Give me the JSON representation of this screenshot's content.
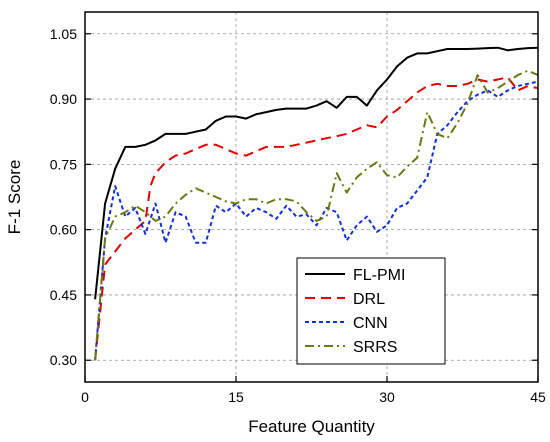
{
  "chart_data": {
    "type": "line",
    "xlabel": "Feature Quantity",
    "ylabel": "F-1 Score",
    "xlim": [
      0,
      45
    ],
    "ylim": [
      0.25,
      1.1
    ],
    "xticks": [
      "0",
      "15",
      "30",
      "45"
    ],
    "yticks": [
      "0.30",
      "0.45",
      "0.60",
      "0.75",
      "0.90",
      "1.05"
    ],
    "grid": true,
    "legend_position": "bottom-right",
    "series": [
      {
        "name": "FL-PMI",
        "color": "#000000",
        "dash": "solid",
        "x": [
          1,
          2,
          3,
          4,
          5,
          6,
          7,
          8,
          9,
          10,
          11,
          12,
          13,
          14,
          15,
          16,
          17,
          18,
          19,
          20,
          21,
          22,
          23,
          24,
          25,
          26,
          27,
          28,
          29,
          30,
          31,
          32,
          33,
          34,
          35,
          36,
          37,
          38,
          39,
          40,
          41,
          42,
          43,
          44,
          45
        ],
        "values": [
          0.44,
          0.66,
          0.74,
          0.79,
          0.79,
          0.795,
          0.805,
          0.82,
          0.82,
          0.82,
          0.825,
          0.83,
          0.85,
          0.86,
          0.86,
          0.855,
          0.865,
          0.87,
          0.875,
          0.878,
          0.878,
          0.878,
          0.885,
          0.895,
          0.88,
          0.905,
          0.905,
          0.885,
          0.92,
          0.945,
          0.975,
          0.995,
          1.005,
          1.005,
          1.01,
          1.015,
          1.015,
          1.015,
          1.016,
          1.017,
          1.018,
          1.012,
          1.015,
          1.017,
          1.018
        ]
      },
      {
        "name": "DRL",
        "color": "#e00000",
        "dash": "long-dash",
        "x": [
          1,
          2,
          3,
          4,
          5,
          6,
          6.5,
          7,
          8,
          9,
          10,
          11,
          12,
          13,
          14,
          15,
          16,
          17,
          18,
          19,
          20,
          21,
          22,
          23,
          24,
          25,
          26,
          27,
          28,
          29,
          30,
          31,
          32,
          33,
          34,
          35,
          36,
          37,
          38,
          39,
          40,
          41,
          42,
          43,
          44,
          45
        ],
        "values": [
          0.3,
          0.52,
          0.55,
          0.58,
          0.6,
          0.62,
          0.7,
          0.73,
          0.755,
          0.77,
          0.775,
          0.785,
          0.795,
          0.795,
          0.785,
          0.775,
          0.77,
          0.78,
          0.79,
          0.79,
          0.79,
          0.795,
          0.8,
          0.805,
          0.81,
          0.815,
          0.82,
          0.83,
          0.84,
          0.835,
          0.86,
          0.875,
          0.895,
          0.915,
          0.93,
          0.935,
          0.93,
          0.93,
          0.935,
          0.945,
          0.94,
          0.945,
          0.95,
          0.92,
          0.93,
          0.925
        ]
      },
      {
        "name": "CNN",
        "color": "#1030e0",
        "dash": "short-dash",
        "x": [
          1,
          2,
          3,
          4,
          5,
          6,
          7,
          8,
          9,
          10,
          11,
          12,
          13,
          14,
          15,
          16,
          17,
          18,
          19,
          20,
          21,
          22,
          23,
          24,
          25,
          26,
          27,
          28,
          29,
          30,
          31,
          32,
          33,
          34,
          35,
          36,
          37,
          38,
          39,
          40,
          41,
          42,
          43,
          44,
          45
        ],
        "values": [
          0.3,
          0.58,
          0.7,
          0.63,
          0.65,
          0.59,
          0.66,
          0.57,
          0.64,
          0.63,
          0.57,
          0.57,
          0.655,
          0.64,
          0.66,
          0.63,
          0.65,
          0.64,
          0.625,
          0.655,
          0.63,
          0.635,
          0.61,
          0.65,
          0.64,
          0.575,
          0.61,
          0.63,
          0.595,
          0.61,
          0.65,
          0.66,
          0.69,
          0.72,
          0.82,
          0.84,
          0.87,
          0.895,
          0.91,
          0.92,
          0.905,
          0.92,
          0.93,
          0.935,
          0.94
        ]
      },
      {
        "name": "SRRS",
        "color": "#6b7a10",
        "dash": "dash-dot",
        "x": [
          1,
          2,
          3,
          4,
          5,
          6,
          7,
          8,
          9,
          10,
          11,
          12,
          13,
          14,
          15,
          16,
          17,
          18,
          19,
          20,
          21,
          22,
          23,
          24,
          25,
          26,
          27,
          28,
          29,
          30,
          31,
          32,
          33,
          34,
          35,
          36,
          37,
          38,
          39,
          40,
          41,
          42,
          43,
          44,
          45
        ],
        "values": [
          0.3,
          0.58,
          0.63,
          0.64,
          0.655,
          0.64,
          0.62,
          0.63,
          0.66,
          0.68,
          0.695,
          0.685,
          0.675,
          0.665,
          0.66,
          0.67,
          0.67,
          0.66,
          0.67,
          0.67,
          0.665,
          0.64,
          0.62,
          0.63,
          0.73,
          0.685,
          0.72,
          0.74,
          0.755,
          0.725,
          0.72,
          0.745,
          0.765,
          0.87,
          0.82,
          0.81,
          0.845,
          0.89,
          0.955,
          0.915,
          0.925,
          0.94,
          0.955,
          0.965,
          0.955
        ]
      }
    ]
  }
}
